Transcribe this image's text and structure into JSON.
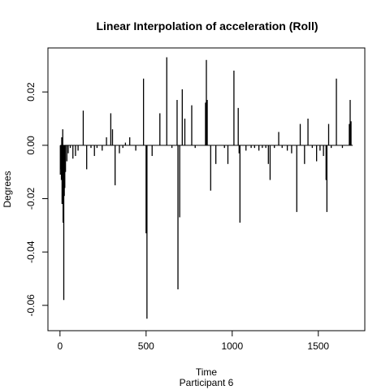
{
  "chart_data": {
    "type": "bar",
    "title": "Linear Interpolation of acceleration (Roll)",
    "xlabel": "Time",
    "subtitle": "Participant  6",
    "ylabel": "Degrees",
    "xlim": [
      -70,
      1770
    ],
    "ylim": [
      -0.0695,
      0.0365
    ],
    "x_ticks": [
      0,
      500,
      1000,
      1500
    ],
    "y_ticks": [
      -0.06,
      -0.04,
      -0.02,
      0.0,
      0.02
    ],
    "y_tick_labels": [
      "-0.06",
      "-0.04",
      "-0.02",
      "0.00",
      "0.02"
    ],
    "baseline": 0,
    "x_end": 1700,
    "bar_color": "#000000",
    "x": [
      2,
      5,
      8,
      10,
      12,
      14,
      16,
      18,
      22,
      25,
      28,
      32,
      40,
      48,
      60,
      75,
      90,
      105,
      135,
      155,
      180,
      200,
      215,
      245,
      270,
      295,
      305,
      320,
      345,
      365,
      380,
      405,
      440,
      485,
      500,
      505,
      535,
      580,
      620,
      650,
      680,
      685,
      695,
      710,
      725,
      765,
      785,
      845,
      850,
      855,
      875,
      905,
      955,
      975,
      1010,
      1035,
      1040,
      1045,
      1080,
      1110,
      1130,
      1155,
      1175,
      1195,
      1210,
      1220,
      1245,
      1270,
      1290,
      1320,
      1345,
      1375,
      1395,
      1420,
      1440,
      1465,
      1490,
      1510,
      1530,
      1545,
      1550,
      1560,
      1575,
      1605,
      1640,
      1680,
      1685,
      1690
    ],
    "values": [
      -0.011,
      -0.009,
      -0.013,
      0.003,
      -0.022,
      -0.021,
      0.006,
      -0.029,
      -0.058,
      -0.019,
      -0.016,
      -0.01,
      -0.006,
      -0.003,
      -0.001,
      -0.005,
      -0.004,
      -0.002,
      0.013,
      -0.009,
      -0.001,
      -0.004,
      -0.001,
      -0.002,
      0.003,
      0.012,
      0.006,
      -0.015,
      -0.003,
      -0.001,
      0.001,
      0.003,
      -0.002,
      0.025,
      -0.033,
      -0.065,
      -0.004,
      0.012,
      0.033,
      -0.001,
      0.017,
      -0.054,
      -0.027,
      0.021,
      0.01,
      0.015,
      -0.001,
      0.016,
      0.032,
      0.017,
      -0.017,
      -0.007,
      -0.001,
      -0.007,
      0.028,
      0.014,
      -0.003,
      -0.029,
      -0.002,
      -0.001,
      -0.001,
      -0.002,
      -0.001,
      -0.001,
      -0.007,
      -0.013,
      -0.001,
      0.005,
      -0.001,
      -0.002,
      -0.003,
      -0.025,
      0.008,
      -0.007,
      0.01,
      -0.001,
      -0.006,
      -0.002,
      -0.004,
      -0.013,
      -0.025,
      0.008,
      -0.001,
      0.025,
      -0.001,
      0.008,
      0.017,
      0.009
    ]
  }
}
